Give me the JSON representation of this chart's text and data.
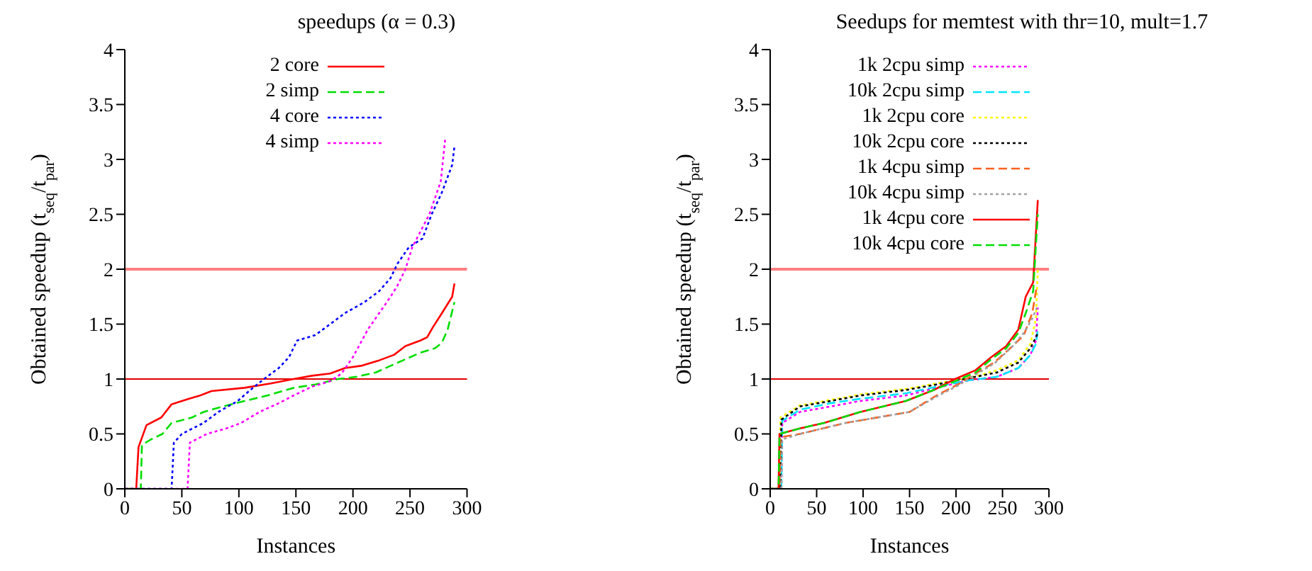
{
  "chart_data": [
    {
      "type": "line",
      "title": "speedups (α = 0.3)",
      "xlabel": "Instances",
      "ylabel": "Obtained speedup (t$_{seq}$/t$_{par}$)",
      "xlim": [
        0,
        300
      ],
      "xticks": [
        0,
        50,
        100,
        150,
        200,
        250,
        300
      ],
      "ylim": [
        0,
        4
      ],
      "yticks": [
        0,
        0.5,
        1,
        1.5,
        2,
        2.5,
        3,
        3.5,
        4
      ],
      "legend": "top right",
      "marker": "none",
      "ref_lines": [
        {
          "axis": "y",
          "value": 2,
          "color": "#ff8080"
        },
        {
          "axis": "y",
          "value": 1,
          "color": "#e00000"
        }
      ],
      "series": [
        {
          "name": "2 core",
          "color": "#ff0000",
          "line_style": "solid",
          "x": [
            0,
            10,
            12,
            19,
            32,
            41,
            56,
            66,
            76,
            105,
            128,
            148,
            164,
            180,
            193,
            207,
            223,
            236,
            246,
            259,
            265,
            270,
            278,
            287,
            289
          ],
          "values": [
            0,
            0,
            0.38,
            0.58,
            0.65,
            0.77,
            0.82,
            0.85,
            0.89,
            0.92,
            0.96,
            1.0,
            1.03,
            1.05,
            1.1,
            1.12,
            1.17,
            1.22,
            1.3,
            1.35,
            1.38,
            1.47,
            1.6,
            1.75,
            1.87
          ]
        },
        {
          "name": "2 simp",
          "color": "#00dd00",
          "line_style": "dashed",
          "x": [
            0,
            14,
            15,
            23,
            33,
            41,
            59,
            69,
            86,
            105,
            125,
            135,
            148,
            167,
            187,
            203,
            220,
            233,
            246,
            259,
            272,
            278,
            283,
            289
          ],
          "values": [
            0,
            0,
            0.4,
            0.45,
            0.5,
            0.6,
            0.65,
            0.7,
            0.75,
            0.8,
            0.85,
            0.88,
            0.92,
            0.95,
            1.0,
            1.02,
            1.06,
            1.12,
            1.18,
            1.24,
            1.28,
            1.33,
            1.45,
            1.7
          ]
        },
        {
          "name": "4 core",
          "color": "#0000ff",
          "line_style": "dotted",
          "x": [
            0,
            41,
            43,
            50,
            69,
            82,
            99,
            110,
            122,
            135,
            144,
            151,
            167,
            180,
            193,
            210,
            223,
            233,
            239,
            249,
            261,
            269,
            278,
            287,
            289
          ],
          "values": [
            0,
            0,
            0.42,
            0.5,
            0.6,
            0.7,
            0.8,
            0.9,
            1.0,
            1.1,
            1.2,
            1.35,
            1.4,
            1.5,
            1.6,
            1.7,
            1.8,
            1.92,
            2.05,
            2.2,
            2.28,
            2.5,
            2.7,
            2.95,
            3.12
          ]
        },
        {
          "name": "4 simp",
          "color": "#ff00ff",
          "line_style": "dotted",
          "x": [
            0,
            55,
            57,
            72,
            89,
            102,
            118,
            135,
            148,
            164,
            180,
            190,
            200,
            213,
            223,
            233,
            239,
            246,
            252,
            267,
            277,
            281
          ],
          "values": [
            0,
            0,
            0.42,
            0.5,
            0.55,
            0.6,
            0.7,
            0.78,
            0.85,
            0.93,
            0.98,
            1.05,
            1.2,
            1.45,
            1.6,
            1.75,
            1.85,
            2.0,
            2.2,
            2.5,
            2.8,
            3.2
          ]
        }
      ]
    },
    {
      "type": "line",
      "title": "Seedups for memtest with thr=10, mult=1.7",
      "xlabel": "Instances",
      "ylabel": "Obtained speedup (t$_{seq}$/t$_{par}$)",
      "xlim": [
        0,
        300
      ],
      "xticks": [
        0,
        50,
        100,
        150,
        200,
        250,
        300
      ],
      "ylim": [
        0,
        4
      ],
      "yticks": [
        0,
        0.5,
        1,
        1.5,
        2,
        2.5,
        3,
        3.5,
        4
      ],
      "legend": "top right",
      "marker": "none",
      "ref_lines": [
        {
          "axis": "y",
          "value": 2,
          "color": "#ff8080"
        },
        {
          "axis": "y",
          "value": 1,
          "color": "#e00000"
        }
      ],
      "series": [
        {
          "name": "1k 2cpu simp",
          "color": "#ff00ff",
          "line_style": "dotted",
          "x": [
            0,
            12,
            13,
            32,
            65,
            97,
            146,
            179,
            215,
            244,
            267,
            280,
            286,
            288
          ],
          "values": [
            0,
            0,
            0.6,
            0.7,
            0.75,
            0.8,
            0.85,
            0.92,
            0.99,
            1.02,
            1.1,
            1.22,
            1.35,
            1.65
          ]
        },
        {
          "name": "10k 2cpu simp",
          "color": "#00e5ff",
          "line_style": "dashed",
          "x": [
            0,
            12,
            13,
            32,
            65,
            97,
            146,
            179,
            215,
            244,
            267,
            280,
            286,
            288
          ],
          "values": [
            0,
            0,
            0.62,
            0.72,
            0.78,
            0.82,
            0.87,
            0.93,
            0.99,
            1.02,
            1.1,
            1.22,
            1.32,
            1.45
          ]
        },
        {
          "name": "1k 2cpu core",
          "color": "#ffff00",
          "line_style": "dotted",
          "x": [
            0,
            10,
            11,
            32,
            65,
            97,
            146,
            179,
            215,
            244,
            267,
            280,
            286,
            288
          ],
          "values": [
            0,
            0,
            0.65,
            0.76,
            0.81,
            0.86,
            0.91,
            0.96,
            1.01,
            1.08,
            1.17,
            1.32,
            1.55,
            2.0
          ]
        },
        {
          "name": "10k 2cpu core",
          "color": "#000000",
          "line_style": "dotted",
          "x": [
            0,
            11,
            12,
            32,
            65,
            97,
            146,
            179,
            215,
            244,
            267,
            280,
            286,
            288
          ],
          "values": [
            0,
            0,
            0.63,
            0.75,
            0.8,
            0.85,
            0.9,
            0.95,
            1.01,
            1.06,
            1.15,
            1.28,
            1.38,
            1.42
          ]
        },
        {
          "name": "1k 4cpu simp",
          "color": "#ff6020",
          "line_style": "dashed",
          "x": [
            0,
            10,
            11,
            32,
            81,
            150,
            179,
            202,
            221,
            241,
            261,
            273,
            282,
            287
          ],
          "values": [
            0,
            0,
            0.47,
            0.5,
            0.6,
            0.7,
            0.85,
            0.95,
            1.05,
            1.15,
            1.3,
            1.4,
            1.6,
            1.85
          ]
        },
        {
          "name": "10k 4cpu simp",
          "color": "#a0a0a0",
          "line_style": "dotted",
          "x": [
            0,
            12,
            13,
            32,
            81,
            150,
            179,
            202,
            221,
            241,
            261,
            273,
            282,
            287
          ],
          "values": [
            0,
            0,
            0.45,
            0.5,
            0.6,
            0.7,
            0.84,
            0.94,
            1.04,
            1.14,
            1.3,
            1.42,
            1.55,
            1.65
          ]
        },
        {
          "name": "1k 4cpu core",
          "color": "#ff0000",
          "line_style": "solid",
          "x": [
            0,
            9,
            10,
            32,
            58,
            97,
            146,
            176,
            199,
            221,
            238,
            254,
            267,
            275,
            283,
            288
          ],
          "values": [
            0,
            0,
            0.5,
            0.55,
            0.6,
            0.7,
            0.8,
            0.9,
            1.0,
            1.08,
            1.2,
            1.3,
            1.45,
            1.75,
            1.88,
            2.63
          ]
        },
        {
          "name": "10k 4cpu core",
          "color": "#00dd00",
          "line_style": "dashed",
          "x": [
            0,
            9,
            10,
            32,
            58,
            97,
            146,
            176,
            199,
            221,
            238,
            254,
            267,
            275,
            283,
            288
          ],
          "values": [
            0,
            0,
            0.5,
            0.55,
            0.6,
            0.7,
            0.8,
            0.9,
            0.98,
            1.06,
            1.18,
            1.28,
            1.42,
            1.6,
            1.8,
            2.5
          ]
        }
      ]
    }
  ]
}
